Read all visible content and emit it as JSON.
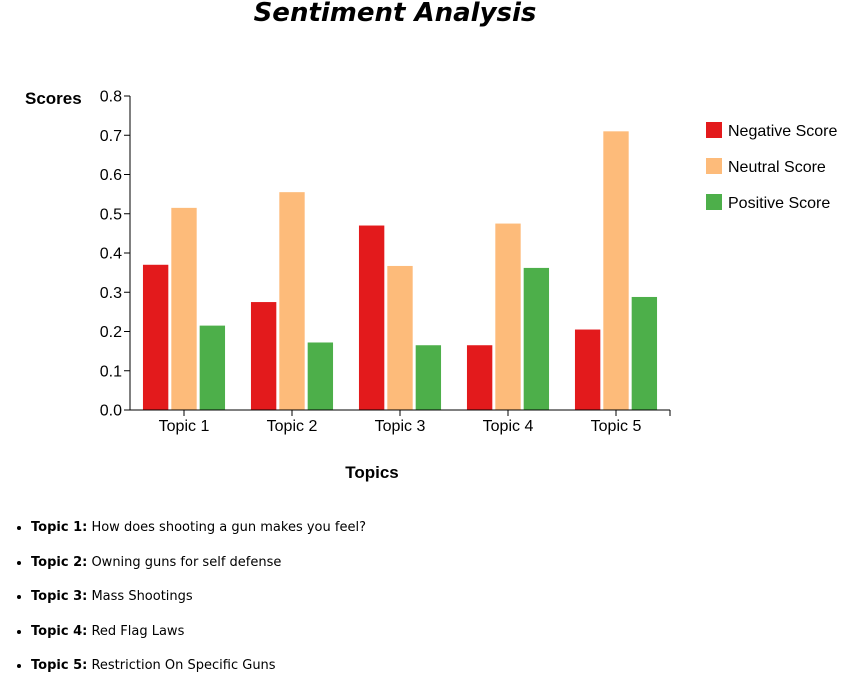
{
  "chart_data": {
    "type": "bar",
    "title": "Sentiment Analysis",
    "xlabel": "Topics",
    "ylabel": "Scores",
    "categories": [
      "Topic 1",
      "Topic 2",
      "Topic 3",
      "Topic 4",
      "Topic 5"
    ],
    "series": [
      {
        "name": "Negative Score",
        "color": "#e31a1c",
        "values": [
          0.37,
          0.275,
          0.47,
          0.165,
          0.205
        ]
      },
      {
        "name": "Neutral Score",
        "color": "#fdbb7a",
        "values": [
          0.515,
          0.555,
          0.367,
          0.475,
          0.71
        ]
      },
      {
        "name": "Positive Score",
        "color": "#4daf4a",
        "values": [
          0.215,
          0.172,
          0.165,
          0.362,
          0.288
        ]
      }
    ],
    "ylim": [
      0,
      0.8
    ],
    "yticks": [
      "0.0",
      "0.1",
      "0.2",
      "0.3",
      "0.4",
      "0.5",
      "0.6",
      "0.7",
      "0.8"
    ],
    "grid": false,
    "legend_position": "right"
  },
  "topics": [
    {
      "label": "Topic 1:",
      "text": "How does shooting a gun makes you feel?"
    },
    {
      "label": "Topic 2:",
      "text": "Owning guns for self defense"
    },
    {
      "label": "Topic 3:",
      "text": "Mass Shootings"
    },
    {
      "label": "Topic 4:",
      "text": "Red Flag Laws"
    },
    {
      "label": "Topic 5:",
      "text": "Restriction On Specific Guns"
    }
  ]
}
